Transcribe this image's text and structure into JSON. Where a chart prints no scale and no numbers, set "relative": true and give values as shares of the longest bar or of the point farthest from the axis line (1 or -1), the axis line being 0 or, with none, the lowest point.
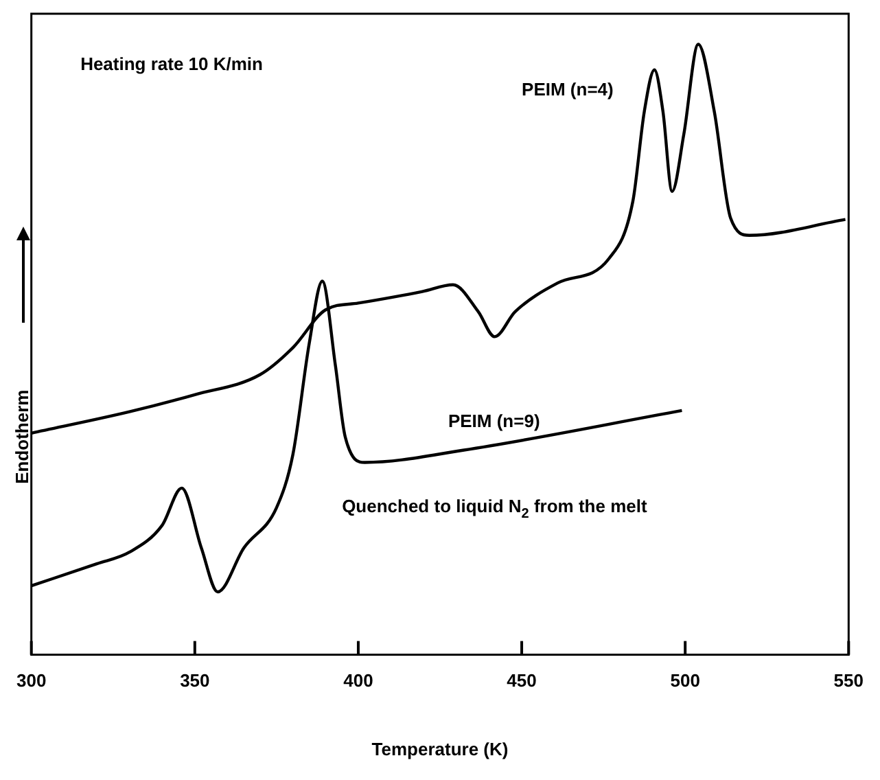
{
  "chart_data": {
    "type": "line",
    "xlabel": "Temperature (K)",
    "ylabel": "Endotherm",
    "relative": true,
    "xlim": [
      300,
      550
    ],
    "xticks": [
      300,
      350,
      400,
      450,
      500,
      550
    ],
    "grid": false,
    "legend": false,
    "marker": "none",
    "line_style": "solid",
    "annotations": [
      "Heating rate 10 K/min",
      "Quenched to liquid N$_{2}$ from the melt"
    ],
    "series": [
      {
        "name": "PEIM (n=4)",
        "color": "#000000",
        "x": [
          300,
          330,
          350,
          370,
          380,
          390,
          400,
          419.6,
          429,
          436.7,
          441.7,
          448,
          461,
          476.7,
          484,
          487.5,
          490.6,
          493.2,
          496,
          499.6,
          504,
          508.9,
          513.9,
          519.6,
          549
        ],
        "values": [
          0.363,
          0.398,
          0.426,
          0.459,
          0.503,
          0.565,
          0.576,
          0.595,
          0.606,
          0.562,
          0.521,
          0.562,
          0.609,
          0.649,
          0.743,
          0.89,
          0.958,
          0.89,
          0.759,
          0.853,
          1,
          0.89,
          0.715,
          0.687,
          0.713
        ]
      },
      {
        "name": "PEIM (n=9)",
        "color": "#000000",
        "x": [
          300,
          320,
          330,
          340,
          346,
          352,
          357,
          365,
          375,
          380,
          385,
          389,
          393,
          396,
          402,
          432,
          499
        ],
        "values": [
          0.113,
          0.149,
          0.168,
          0.212,
          0.273,
          0.175,
          0.103,
          0.175,
          0.241,
          0.328,
          0.51,
          0.612,
          0.474,
          0.357,
          0.315,
          0.335,
          0.4
        ]
      }
    ]
  }
}
